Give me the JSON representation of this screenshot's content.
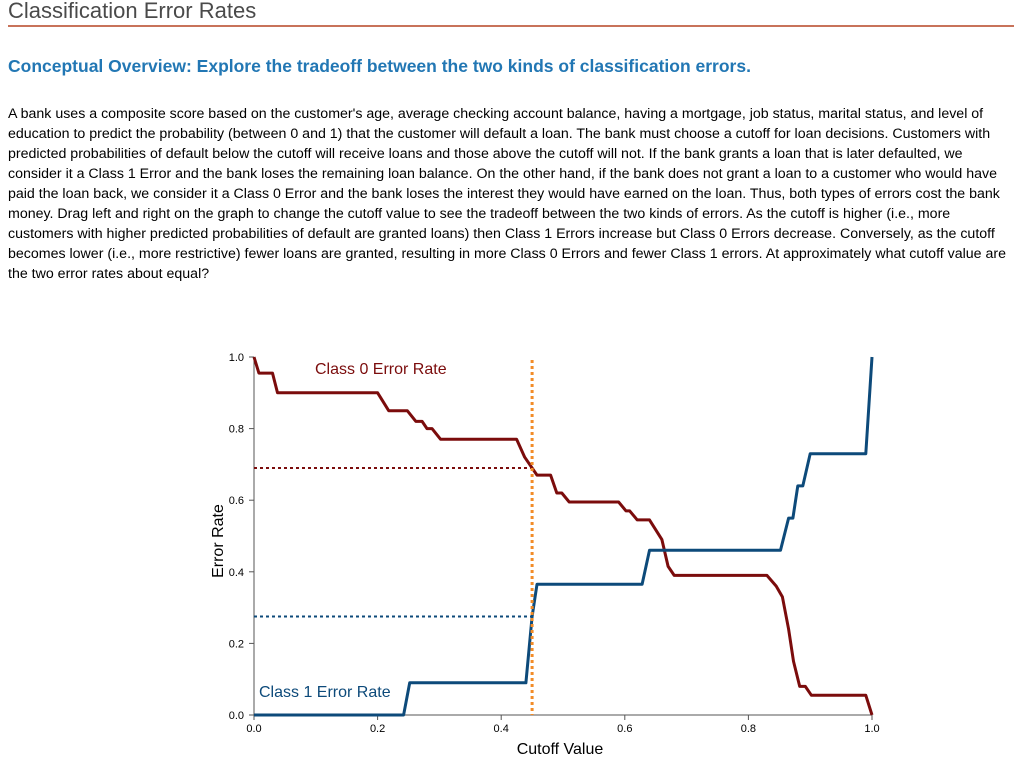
{
  "page": {
    "title": "Classification Error Rates",
    "subtitle": "Conceptual Overview: Explore the tradeoff between the two kinds of classification errors.",
    "description": "A bank uses a composite score based on the customer's age, average checking account balance, having a mortgage, job status, marital status, and level of education to predict the probability (between 0 and 1) that the customer will default a loan. The bank must choose a cutoff for loan decisions. Customers with predicted probabilities of default below the cutoff will receive loans and those above the cutoff will not. If the bank grants a loan that is later defaulted, we consider it a Class 1 Error and the bank loses the remaining loan balance. On the other hand, if the bank does not grant a loan to a customer who would have paid the loan back, we consider it a Class 0 Error and the bank loses the interest they would have earned on the loan. Thus, both types of errors cost the bank money. Drag left and right on the graph to change the cutoff value to see the tradeoff between the two kinds of errors. As the cutoff is higher (i.e., more customers with higher predicted probabilities of default are granted loans) then Class 1 Errors increase but Class 0 Errors decrease. Conversely, as the cutoff becomes lower (i.e., more restrictive) fewer loans are granted, resulting in more Class 0 Errors and fewer Class 1 errors. At approximately what cutoff value are the two error rates about equal?"
  },
  "chart_data": {
    "type": "line",
    "xlabel": "Cutoff Value",
    "ylabel": "Error Rate",
    "xlim": [
      0,
      1
    ],
    "ylim": [
      0,
      1
    ],
    "x_ticks": [
      "0.0",
      "0.2",
      "0.4",
      "0.6",
      "0.8",
      "1.0"
    ],
    "y_ticks": [
      "0.0",
      "0.2",
      "0.4",
      "0.6",
      "0.8",
      "1.0"
    ],
    "grid": false,
    "cutoff": 0.45,
    "cutoff_class0_rate": 0.69,
    "cutoff_class1_rate": 0.275,
    "colors": {
      "class0": "#7b0c0c",
      "class1": "#0d4a7a",
      "cutoff": "#f28c28",
      "axis": "#555555"
    },
    "series": [
      {
        "name": "Class 0 Error Rate",
        "key": "class0",
        "points": [
          [
            0.0,
            1.0
          ],
          [
            0.008,
            0.955
          ],
          [
            0.03,
            0.955
          ],
          [
            0.038,
            0.9
          ],
          [
            0.2,
            0.9
          ],
          [
            0.218,
            0.85
          ],
          [
            0.248,
            0.85
          ],
          [
            0.262,
            0.82
          ],
          [
            0.272,
            0.82
          ],
          [
            0.28,
            0.8
          ],
          [
            0.288,
            0.8
          ],
          [
            0.302,
            0.77
          ],
          [
            0.425,
            0.77
          ],
          [
            0.438,
            0.72
          ],
          [
            0.458,
            0.67
          ],
          [
            0.48,
            0.67
          ],
          [
            0.49,
            0.62
          ],
          [
            0.498,
            0.62
          ],
          [
            0.51,
            0.595
          ],
          [
            0.59,
            0.595
          ],
          [
            0.602,
            0.57
          ],
          [
            0.608,
            0.57
          ],
          [
            0.62,
            0.545
          ],
          [
            0.64,
            0.545
          ],
          [
            0.66,
            0.49
          ],
          [
            0.67,
            0.415
          ],
          [
            0.68,
            0.39
          ],
          [
            0.83,
            0.39
          ],
          [
            0.845,
            0.36
          ],
          [
            0.855,
            0.33
          ],
          [
            0.865,
            0.24
          ],
          [
            0.873,
            0.15
          ],
          [
            0.883,
            0.08
          ],
          [
            0.892,
            0.08
          ],
          [
            0.902,
            0.055
          ],
          [
            0.99,
            0.055
          ],
          [
            1.0,
            0.0
          ]
        ]
      },
      {
        "name": "Class 1 Error Rate",
        "key": "class1",
        "points": [
          [
            0.0,
            0.0
          ],
          [
            0.242,
            0.0
          ],
          [
            0.252,
            0.09
          ],
          [
            0.44,
            0.09
          ],
          [
            0.45,
            0.275
          ],
          [
            0.458,
            0.365
          ],
          [
            0.628,
            0.365
          ],
          [
            0.64,
            0.46
          ],
          [
            0.852,
            0.46
          ],
          [
            0.865,
            0.55
          ],
          [
            0.872,
            0.55
          ],
          [
            0.88,
            0.64
          ],
          [
            0.888,
            0.64
          ],
          [
            0.9,
            0.73
          ],
          [
            0.99,
            0.73
          ],
          [
            1.0,
            1.0
          ]
        ]
      }
    ]
  }
}
